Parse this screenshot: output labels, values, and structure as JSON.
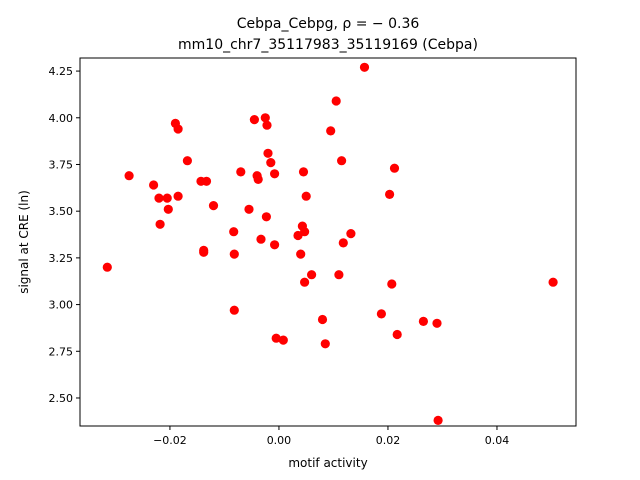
{
  "chart_data": {
    "type": "scatter",
    "title_line1": "Cebpa_Cebpg, ρ = − 0.36",
    "title_line2": "mm10_chr7_35117983_35119169 (Cebpa)",
    "xlabel": "motif activity",
    "ylabel": "signal at CRE (ln)",
    "xlim": [
      -0.0365,
      0.0545
    ],
    "ylim": [
      2.35,
      4.32
    ],
    "xticks": [
      -0.02,
      0.0,
      0.02,
      0.04
    ],
    "xtick_labels": [
      "−0.02",
      "0.00",
      "0.02",
      "0.04"
    ],
    "yticks": [
      2.5,
      2.75,
      3.0,
      3.25,
      3.5,
      3.75,
      4.0,
      4.25
    ],
    "ytick_labels": [
      "2.50",
      "2.75",
      "3.00",
      "3.25",
      "3.50",
      "3.75",
      "4.00",
      "4.25"
    ],
    "grid": false,
    "marker_color": "#ff0000",
    "points": [
      [
        -0.0315,
        3.2
      ],
      [
        -0.0275,
        3.69
      ],
      [
        -0.023,
        3.64
      ],
      [
        -0.022,
        3.57
      ],
      [
        -0.0218,
        3.43
      ],
      [
        -0.0205,
        3.57
      ],
      [
        -0.0203,
        3.51
      ],
      [
        -0.019,
        3.97
      ],
      [
        -0.0185,
        3.94
      ],
      [
        -0.0185,
        3.58
      ],
      [
        -0.0168,
        3.77
      ],
      [
        -0.0143,
        3.66
      ],
      [
        -0.0133,
        3.66
      ],
      [
        -0.0138,
        3.29
      ],
      [
        -0.0138,
        3.28
      ],
      [
        -0.012,
        3.53
      ],
      [
        -0.0083,
        3.39
      ],
      [
        -0.0082,
        3.27
      ],
      [
        -0.0082,
        2.97
      ],
      [
        -0.007,
        3.71
      ],
      [
        -0.0055,
        3.51
      ],
      [
        -0.0045,
        3.99
      ],
      [
        -0.004,
        3.69
      ],
      [
        -0.0038,
        3.67
      ],
      [
        -0.0033,
        3.35
      ],
      [
        -0.0025,
        4.0
      ],
      [
        -0.0023,
        3.47
      ],
      [
        -0.0022,
        3.96
      ],
      [
        -0.002,
        3.81
      ],
      [
        -0.0015,
        3.76
      ],
      [
        -0.0008,
        3.7
      ],
      [
        -0.0008,
        3.32
      ],
      [
        -0.0005,
        2.82
      ],
      [
        0.0008,
        2.81
      ],
      [
        0.0035,
        3.37
      ],
      [
        0.004,
        3.27
      ],
      [
        0.0043,
        3.42
      ],
      [
        0.0045,
        3.71
      ],
      [
        0.0047,
        3.39
      ],
      [
        0.0047,
        3.12
      ],
      [
        0.005,
        3.58
      ],
      [
        0.006,
        3.16
      ],
      [
        0.008,
        2.92
      ],
      [
        0.0085,
        2.79
      ],
      [
        0.0095,
        3.93
      ],
      [
        0.0105,
        4.09
      ],
      [
        0.011,
        3.16
      ],
      [
        0.0115,
        3.77
      ],
      [
        0.0118,
        3.33
      ],
      [
        0.0132,
        3.38
      ],
      [
        0.0157,
        4.27
      ],
      [
        0.0188,
        2.95
      ],
      [
        0.0203,
        3.59
      ],
      [
        0.0207,
        3.11
      ],
      [
        0.0212,
        3.73
      ],
      [
        0.0217,
        2.84
      ],
      [
        0.0265,
        2.91
      ],
      [
        0.029,
        2.9
      ],
      [
        0.0292,
        2.38
      ],
      [
        0.0503,
        3.12
      ]
    ]
  }
}
